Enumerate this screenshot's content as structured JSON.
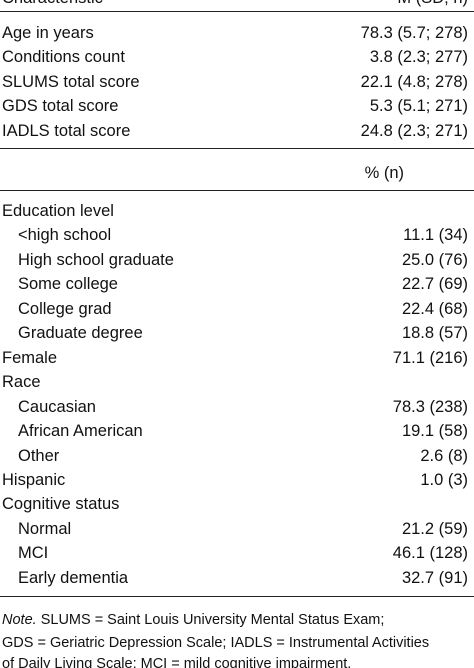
{
  "table1": {
    "header": [
      "Characteristic",
      "M (SD; n)"
    ],
    "rows": [
      [
        "Age in years",
        "78.3 (5.7; 278)"
      ],
      [
        "Conditions count",
        "3.8 (2.3; 277)"
      ],
      [
        "SLUMS total score",
        "22.1 (4.8; 278)"
      ],
      [
        "GDS total score",
        "5.3 (5.1; 271)"
      ],
      [
        "IADLS total score",
        "24.8 (2.3; 271)"
      ]
    ]
  },
  "table2": {
    "header": "% (n)",
    "rows": [
      {
        "label": "Education level",
        "rows": [
          [
            "<high school",
            "11.1 (34)"
          ],
          [
            "High school graduate",
            "25.0 (76)"
          ],
          [
            "Some college",
            "22.7 (69)"
          ],
          [
            "College grad",
            "22.4 (68)"
          ],
          [
            "Graduate degree",
            "18.8 (57)"
          ]
        ]
      },
      {
        "label": "Female",
        "value": "71.1 (216)"
      },
      {
        "label": "Race",
        "rows": [
          [
            "Caucasian",
            "78.3 (238)"
          ],
          [
            "African American",
            "19.1 (58)"
          ],
          [
            "Other",
            "2.6 (8)"
          ]
        ]
      },
      {
        "label": "Hispanic",
        "value": "1.0 (3)"
      },
      {
        "label": "Cognitive status",
        "rows": [
          [
            "Normal",
            "21.2 (59)"
          ],
          [
            "MCI",
            "46.1 (128)"
          ],
          [
            "Early dementia",
            "32.7 (91)"
          ]
        ]
      }
    ]
  },
  "note": {
    "lead": "Note.",
    "lines": [
      "SLUMS = Saint Louis University Mental Status Exam;",
      "GDS = Geriatric Depression Scale; IADLS = Instrumental Activities",
      "of Daily Living Scale; MCI = mild cognitive impairment."
    ]
  }
}
